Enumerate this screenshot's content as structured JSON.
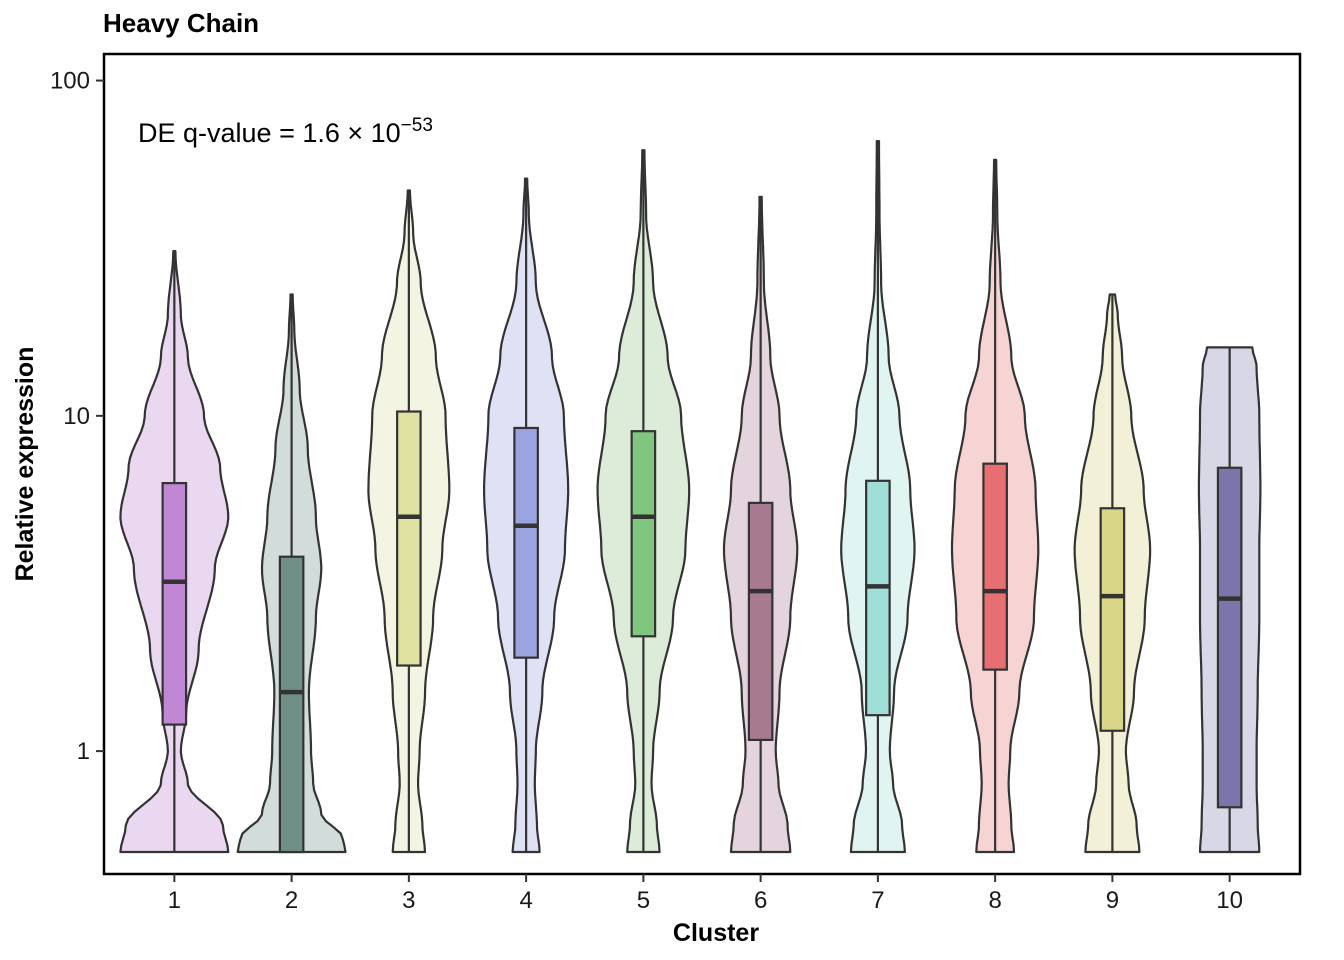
{
  "chart_data": {
    "type": "violin",
    "title": "Heavy Chain",
    "xlabel": "Cluster",
    "ylabel": "Relative expression",
    "y_scale": "log10",
    "ylim": [
      0.43,
      120
    ],
    "y_ticks": [
      1,
      10,
      100
    ],
    "y_tick_labels": [
      "1",
      "10",
      "100"
    ],
    "grid": false,
    "legend": "none",
    "annotation": {
      "prefix": "DE q-value = 1.6 × 10",
      "exponent": "−53"
    },
    "categories": [
      "1",
      "2",
      "3",
      "4",
      "5",
      "6",
      "7",
      "8",
      "9",
      "10"
    ],
    "series": [
      {
        "cluster": "1",
        "fill": "#c088d4",
        "violin_fill": "#e9d8f0",
        "min": 0.5,
        "q1": 1.2,
        "median": 3.2,
        "q3": 6.3,
        "max": 31,
        "density": [
          [
            0.5,
            1.0
          ],
          [
            0.6,
            0.9
          ],
          [
            0.8,
            0.25
          ],
          [
            1.0,
            0.12
          ],
          [
            1.3,
            0.22
          ],
          [
            2,
            0.45
          ],
          [
            3.5,
            0.75
          ],
          [
            5,
            1.0
          ],
          [
            7,
            0.85
          ],
          [
            10,
            0.55
          ],
          [
            15,
            0.25
          ],
          [
            20,
            0.12
          ],
          [
            31,
            0.02
          ]
        ]
      },
      {
        "cluster": "2",
        "fill": "#6f8f87",
        "violin_fill": "#d2dcdb",
        "min": 0.5,
        "q1": 0.5,
        "median": 1.5,
        "q3": 3.8,
        "max": 23,
        "density": [
          [
            0.5,
            1.0
          ],
          [
            0.55,
            0.95
          ],
          [
            0.65,
            0.55
          ],
          [
            0.8,
            0.4
          ],
          [
            1.0,
            0.36
          ],
          [
            1.5,
            0.32
          ],
          [
            2.5,
            0.45
          ],
          [
            3.5,
            0.55
          ],
          [
            5,
            0.45
          ],
          [
            8,
            0.3
          ],
          [
            12,
            0.15
          ],
          [
            18,
            0.05
          ],
          [
            23,
            0.02
          ]
        ]
      },
      {
        "cluster": "3",
        "fill": "#dfe2a0",
        "violin_fill": "#f3f4e2",
        "min": 0.5,
        "q1": 1.8,
        "median": 5.0,
        "q3": 10.3,
        "max": 47,
        "density": [
          [
            0.5,
            0.3
          ],
          [
            0.6,
            0.25
          ],
          [
            0.8,
            0.17
          ],
          [
            1.0,
            0.2
          ],
          [
            1.5,
            0.3
          ],
          [
            2.5,
            0.45
          ],
          [
            4,
            0.62
          ],
          [
            6,
            0.75
          ],
          [
            10,
            0.68
          ],
          [
            15,
            0.5
          ],
          [
            25,
            0.22
          ],
          [
            35,
            0.08
          ],
          [
            47,
            0.02
          ]
        ]
      },
      {
        "cluster": "4",
        "fill": "#9aa4e0",
        "violin_fill": "#dfe2f5",
        "min": 0.5,
        "q1": 1.9,
        "median": 4.7,
        "q3": 9.2,
        "max": 51,
        "density": [
          [
            0.5,
            0.25
          ],
          [
            0.6,
            0.2
          ],
          [
            0.8,
            0.16
          ],
          [
            1.0,
            0.18
          ],
          [
            1.5,
            0.3
          ],
          [
            2.5,
            0.52
          ],
          [
            4,
            0.72
          ],
          [
            6,
            0.78
          ],
          [
            10,
            0.7
          ],
          [
            15,
            0.48
          ],
          [
            25,
            0.18
          ],
          [
            40,
            0.05
          ],
          [
            51,
            0.02
          ]
        ]
      },
      {
        "cluster": "5",
        "fill": "#80c67f",
        "violin_fill": "#dcecd9",
        "min": 0.5,
        "q1": 2.2,
        "median": 5.0,
        "q3": 9.0,
        "max": 62,
        "density": [
          [
            0.5,
            0.3
          ],
          [
            0.6,
            0.25
          ],
          [
            0.8,
            0.15
          ],
          [
            1.0,
            0.18
          ],
          [
            1.5,
            0.3
          ],
          [
            2.5,
            0.55
          ],
          [
            4,
            0.78
          ],
          [
            6,
            0.85
          ],
          [
            10,
            0.7
          ],
          [
            15,
            0.45
          ],
          [
            25,
            0.18
          ],
          [
            40,
            0.05
          ],
          [
            62,
            0.02
          ]
        ]
      },
      {
        "cluster": "6",
        "fill": "#a87a90",
        "violin_fill": "#e3d4dd",
        "min": 0.5,
        "q1": 1.08,
        "median": 3.0,
        "q3": 5.5,
        "max": 45,
        "density": [
          [
            0.5,
            0.55
          ],
          [
            0.6,
            0.5
          ],
          [
            0.8,
            0.33
          ],
          [
            1.0,
            0.28
          ],
          [
            1.5,
            0.35
          ],
          [
            2.5,
            0.55
          ],
          [
            4,
            0.68
          ],
          [
            6,
            0.55
          ],
          [
            10,
            0.35
          ],
          [
            15,
            0.18
          ],
          [
            25,
            0.06
          ],
          [
            45,
            0.02
          ]
        ]
      },
      {
        "cluster": "7",
        "fill": "#a0dfd8",
        "violin_fill": "#e0f4f2",
        "min": 0.5,
        "q1": 1.28,
        "median": 3.1,
        "q3": 6.4,
        "max": 66,
        "density": [
          [
            0.5,
            0.5
          ],
          [
            0.6,
            0.45
          ],
          [
            0.8,
            0.28
          ],
          [
            1.0,
            0.22
          ],
          [
            1.5,
            0.3
          ],
          [
            2.5,
            0.55
          ],
          [
            4,
            0.68
          ],
          [
            6,
            0.6
          ],
          [
            10,
            0.4
          ],
          [
            15,
            0.2
          ],
          [
            25,
            0.06
          ],
          [
            40,
            0.03
          ],
          [
            66,
            0.02
          ]
        ]
      },
      {
        "cluster": "8",
        "fill": "#e76f72",
        "violin_fill": "#f7d4d4",
        "min": 0.5,
        "q1": 1.75,
        "median": 3.0,
        "q3": 7.2,
        "max": 58,
        "density": [
          [
            0.5,
            0.35
          ],
          [
            0.6,
            0.3
          ],
          [
            0.8,
            0.25
          ],
          [
            1.0,
            0.28
          ],
          [
            1.5,
            0.45
          ],
          [
            2.5,
            0.72
          ],
          [
            4,
            0.8
          ],
          [
            6,
            0.75
          ],
          [
            10,
            0.55
          ],
          [
            15,
            0.3
          ],
          [
            25,
            0.1
          ],
          [
            40,
            0.04
          ],
          [
            58,
            0.02
          ]
        ]
      },
      {
        "cluster": "9",
        "fill": "#d9d688",
        "violin_fill": "#f2f1d8",
        "min": 0.5,
        "q1": 1.15,
        "median": 2.9,
        "q3": 5.3,
        "max": 23,
        "density": [
          [
            0.5,
            0.5
          ],
          [
            0.6,
            0.45
          ],
          [
            0.8,
            0.3
          ],
          [
            1.0,
            0.25
          ],
          [
            1.5,
            0.4
          ],
          [
            2.5,
            0.6
          ],
          [
            4,
            0.7
          ],
          [
            6,
            0.58
          ],
          [
            10,
            0.35
          ],
          [
            15,
            0.18
          ],
          [
            20,
            0.1
          ],
          [
            23,
            0.05
          ]
        ]
      },
      {
        "cluster": "10",
        "fill": "#7a76aa",
        "violin_fill": "#d8d7e6",
        "min": 0.5,
        "q1": 0.68,
        "median": 2.85,
        "q3": 7.0,
        "max": 16,
        "density": [
          [
            0.5,
            0.55
          ],
          [
            0.6,
            0.52
          ],
          [
            0.8,
            0.5
          ],
          [
            1.0,
            0.5
          ],
          [
            1.5,
            0.52
          ],
          [
            2.5,
            0.55
          ],
          [
            4,
            0.55
          ],
          [
            6,
            0.57
          ],
          [
            10,
            0.55
          ],
          [
            14,
            0.5
          ],
          [
            16,
            0.42
          ]
        ]
      }
    ]
  }
}
